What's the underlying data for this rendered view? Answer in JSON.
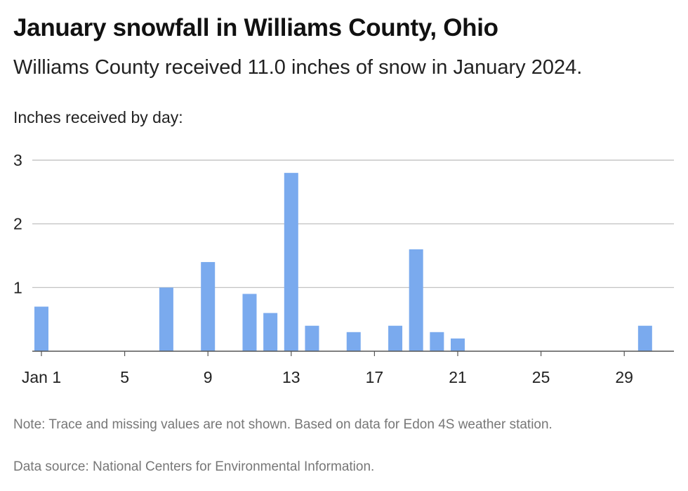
{
  "header": {
    "title": "January snowfall in Williams County, Ohio",
    "subtitle": "Williams County received 11.0 inches of snow in January 2024.",
    "axis_caption": "Inches received by day:"
  },
  "footer": {
    "note": "Note: Trace and missing values are not shown. Based on data for Edon 4S weather station.",
    "source": "Data source: National Centers for Environmental Information."
  },
  "colors": {
    "bar": "#7aaaee",
    "grid": "#bbbbbb",
    "axis": "#555555"
  },
  "chart_data": {
    "type": "bar",
    "title": "January snowfall in Williams County, Ohio",
    "subtitle": "Williams County received 11.0 inches of snow in January 2024.",
    "ylabel": "Inches received by day:",
    "xlabel": "",
    "x_tick_labels": [
      {
        "day": 1,
        "label": "Jan 1"
      },
      {
        "day": 5,
        "label": "5"
      },
      {
        "day": 9,
        "label": "9"
      },
      {
        "day": 13,
        "label": "13"
      },
      {
        "day": 17,
        "label": "17"
      },
      {
        "day": 21,
        "label": "21"
      },
      {
        "day": 25,
        "label": "25"
      },
      {
        "day": 29,
        "label": "29"
      }
    ],
    "y_ticks": [
      1,
      2,
      3
    ],
    "xlim": [
      1,
      31
    ],
    "ylim": [
      0,
      3
    ],
    "grid": true,
    "x": [
      1,
      7,
      9,
      11,
      12,
      13,
      14,
      16,
      18,
      19,
      20,
      21,
      30
    ],
    "values": [
      0.7,
      1.0,
      1.4,
      0.9,
      0.6,
      2.8,
      0.4,
      0.3,
      0.4,
      1.6,
      0.3,
      0.2,
      0.4
    ]
  }
}
